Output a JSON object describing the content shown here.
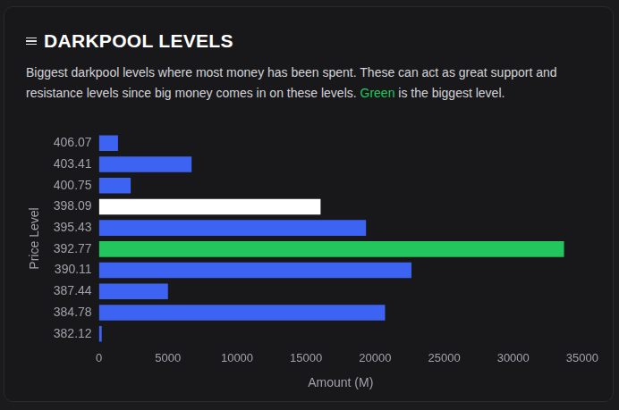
{
  "header": {
    "title": "DARKPOOL LEVELS",
    "description": [
      {
        "text": "Biggest darkpool levels where most money has been spent. These can act as great support and resistance levels since big money comes in on these levels. "
      },
      {
        "text": "Green",
        "color": "#22c55e"
      },
      {
        "text": " is the biggest level."
      }
    ]
  },
  "chart_data": {
    "type": "bar",
    "orientation": "horizontal",
    "x_label": "Amount (M)",
    "y_label": "Price Level",
    "categories": [
      "406.07",
      "403.41",
      "400.75",
      "398.09",
      "395.43",
      "392.77",
      "390.11",
      "387.44",
      "384.78",
      "382.12"
    ],
    "values": [
      1380,
      6710,
      2300,
      16050,
      19340,
      33680,
      22630,
      5000,
      20720,
      200
    ],
    "colors": [
      "#3d63f2",
      "#3d63f2",
      "#3d63f2",
      "#ffffff",
      "#3d63f2",
      "#22c55e",
      "#3d63f2",
      "#3d63f2",
      "#3d63f2",
      "#3d63f2"
    ],
    "xlim": [
      0,
      35000
    ],
    "xticks": [
      0,
      5000,
      10000,
      15000,
      20000,
      25000,
      30000,
      35000
    ],
    "grid": false
  }
}
